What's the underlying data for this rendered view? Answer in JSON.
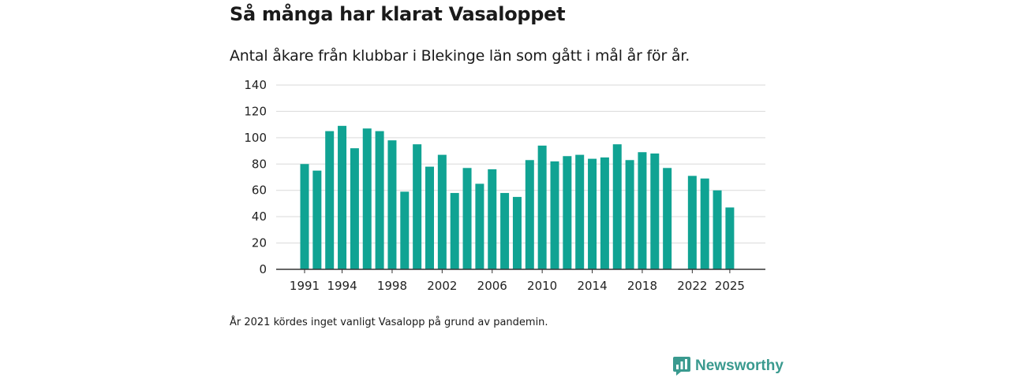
{
  "chart_data": {
    "type": "bar",
    "title": "Så många har klarat Vasaloppet",
    "subtitle": "Antal åkare från klubbar i Blekinge län som gått i mål år för år.",
    "categories": [
      "1991",
      "1992",
      "1993",
      "1994",
      "1995",
      "1996",
      "1997",
      "1998",
      "1999",
      "2000",
      "2001",
      "2002",
      "2003",
      "2004",
      "2005",
      "2006",
      "2007",
      "2008",
      "2009",
      "2010",
      "2011",
      "2012",
      "2013",
      "2014",
      "2015",
      "2016",
      "2017",
      "2018",
      "2019",
      "2020",
      "2021",
      "2022",
      "2023",
      "2024",
      "2025"
    ],
    "values": [
      80,
      75,
      105,
      109,
      92,
      107,
      105,
      98,
      59,
      95,
      78,
      87,
      58,
      77,
      65,
      76,
      58,
      55,
      83,
      94,
      82,
      86,
      87,
      84,
      85,
      95,
      83,
      89,
      88,
      77,
      null,
      71,
      69,
      60,
      47
    ],
    "x_tick_labels": [
      "1991",
      "1994",
      "1998",
      "2002",
      "2006",
      "2010",
      "2014",
      "2018",
      "2022",
      "2025"
    ],
    "y_ticks": [
      0,
      20,
      40,
      60,
      80,
      100,
      120,
      140
    ],
    "ylim": [
      0,
      140
    ],
    "xlabel": "",
    "ylabel": "",
    "grid": true,
    "bar_color": "#10a393",
    "footnote": "År 2021 kördes inget vanligt Vasalopp på grund av pandemin."
  },
  "brand": {
    "name": "Newsworthy",
    "color": "#3a9a8f",
    "icon": "newsworthy-logo-icon"
  }
}
